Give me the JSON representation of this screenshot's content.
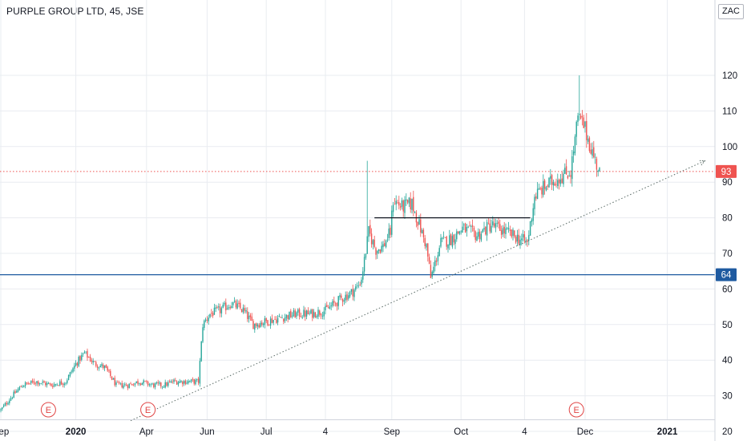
{
  "header": {
    "title": "PURPLE GROUP LTD, 45, JSE",
    "currency": "ZAC"
  },
  "colors": {
    "up": "#26a69a",
    "down": "#ef5350",
    "grid": "#e9ecf1",
    "axis_text": "#131722",
    "support_line": "#1e5aa0",
    "last_price_line": "#ef5350",
    "earnings_marker": "#e04545"
  },
  "chart_data": {
    "type": "candlestick",
    "y_ticks": [
      20,
      30,
      40,
      50,
      60,
      70,
      80,
      90,
      100,
      110,
      120
    ],
    "ylim": [
      17,
      125
    ],
    "x_ticks": [
      {
        "label": "Sep",
        "bold": false,
        "bar": 0
      },
      {
        "label": "2020",
        "bold": true,
        "bar": 52
      },
      {
        "label": "Apr",
        "bold": false,
        "bar": 101
      },
      {
        "label": "Jun",
        "bold": false,
        "bar": 143
      },
      {
        "label": "Jul",
        "bold": false,
        "bar": 184
      },
      {
        "label": "4",
        "bold": false,
        "bar": 225
      },
      {
        "label": "Sep",
        "bold": false,
        "bar": 271
      },
      {
        "label": "Oct",
        "bold": false,
        "bar": 319
      },
      {
        "label": "4",
        "bold": false,
        "bar": 363
      },
      {
        "label": "Dec",
        "bold": false,
        "bar": 405
      },
      {
        "label": "2021",
        "bold": true,
        "bar": 462
      }
    ],
    "bar_count": 492,
    "close_anchors": [
      [
        0,
        26
      ],
      [
        8,
        30
      ],
      [
        15,
        33
      ],
      [
        25,
        34
      ],
      [
        35,
        33
      ],
      [
        45,
        34
      ],
      [
        52,
        39
      ],
      [
        58,
        42
      ],
      [
        65,
        39
      ],
      [
        72,
        38
      ],
      [
        80,
        33
      ],
      [
        88,
        33
      ],
      [
        96,
        34
      ],
      [
        105,
        33
      ],
      [
        113,
        33
      ],
      [
        120,
        34
      ],
      [
        130,
        34
      ],
      [
        137,
        34
      ],
      [
        140,
        50
      ],
      [
        145,
        53
      ],
      [
        152,
        54
      ],
      [
        160,
        56
      ],
      [
        168,
        54
      ],
      [
        175,
        50
      ],
      [
        185,
        51
      ],
      [
        195,
        52
      ],
      [
        205,
        53
      ],
      [
        215,
        53
      ],
      [
        225,
        54
      ],
      [
        235,
        57
      ],
      [
        243,
        59
      ],
      [
        248,
        61
      ],
      [
        250,
        63
      ],
      [
        252,
        68
      ],
      [
        255,
        76
      ],
      [
        260,
        71
      ],
      [
        265,
        72
      ],
      [
        270,
        76
      ],
      [
        272,
        85
      ],
      [
        278,
        83
      ],
      [
        285,
        84
      ],
      [
        290,
        78
      ],
      [
        295,
        72
      ],
      [
        298,
        63
      ],
      [
        305,
        73
      ],
      [
        312,
        74
      ],
      [
        320,
        77
      ],
      [
        330,
        75
      ],
      [
        340,
        78
      ],
      [
        350,
        76
      ],
      [
        360,
        74
      ],
      [
        365,
        73
      ],
      [
        370,
        86
      ],
      [
        375,
        88
      ],
      [
        385,
        91
      ],
      [
        395,
        93
      ],
      [
        400,
        108
      ],
      [
        404,
        106
      ],
      [
        408,
        101
      ],
      [
        412,
        96
      ],
      [
        415,
        93
      ]
    ],
    "spikes": [
      {
        "bar": 254,
        "high": 96
      },
      {
        "bar": 401,
        "high": 120
      }
    ],
    "last_price": 93,
    "support_level": 64,
    "resistance_segment": {
      "from_bar": 259,
      "to_bar": 367,
      "value": 80
    },
    "trend_line": {
      "from_bar": 90,
      "from_value": 23,
      "to_bar": 488,
      "to_value": 96
    },
    "earnings_markers": [
      {
        "bar": 33,
        "label": "E"
      },
      {
        "bar": 102,
        "label": "E"
      },
      {
        "bar": 399,
        "label": "E"
      }
    ],
    "last_price_label": "93",
    "support_label": "64"
  }
}
